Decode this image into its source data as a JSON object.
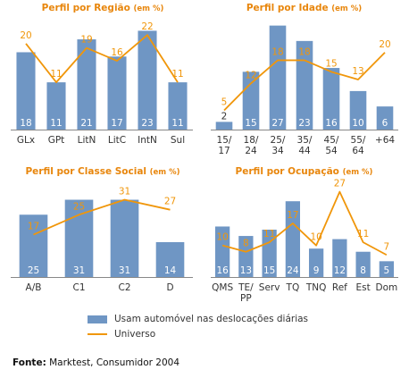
{
  "colors": {
    "bar": "#6f96c4",
    "line": "#f0960a",
    "title": "#e8860c",
    "axis": "#888888",
    "label": "#333333"
  },
  "legend": {
    "bars_label": "Usam automóvel nas deslocações diárias",
    "line_label": "Universo"
  },
  "source": {
    "label": "Fonte:",
    "text": "Marktest, Consumidor 2004"
  },
  "chart_data": [
    {
      "type": "bar",
      "title": "Perfil por Região",
      "title_unit": "(em %)",
      "categories": [
        [
          "GLx"
        ],
        [
          "GPt"
        ],
        [
          "LitN"
        ],
        [
          "LitC"
        ],
        [
          "IntN"
        ],
        [
          "Sul"
        ]
      ],
      "series": [
        {
          "name": "Usam automóvel nas deslocações diárias",
          "type": "bar",
          "values": [
            18,
            11,
            21,
            17,
            23,
            11
          ]
        },
        {
          "name": "Universo",
          "type": "line",
          "values": [
            20,
            11,
            19,
            16,
            22,
            11
          ]
        }
      ],
      "ylim": [
        0,
        26
      ]
    },
    {
      "type": "bar",
      "title": "Perfil por Idade",
      "title_unit": "(em %)",
      "categories": [
        [
          "15/",
          "17"
        ],
        [
          "18/",
          "24"
        ],
        [
          "25/",
          "34"
        ],
        [
          "35/",
          "44"
        ],
        [
          "45/",
          "54"
        ],
        [
          "55/",
          "64"
        ],
        [
          "+64"
        ]
      ],
      "series": [
        {
          "name": "Usam automóvel nas deslocações diárias",
          "type": "bar",
          "values": [
            2,
            15,
            27,
            23,
            16,
            10,
            6
          ]
        },
        {
          "name": "Universo",
          "type": "line",
          "values": [
            5,
            12,
            18,
            18,
            15,
            13,
            20
          ]
        }
      ],
      "ylim": [
        0,
        29
      ]
    },
    {
      "type": "bar",
      "title": "Perfil por Classe Social",
      "title_unit": "(em %)",
      "categories": [
        [
          "A/B"
        ],
        [
          "C1"
        ],
        [
          "C2"
        ],
        [
          "D"
        ]
      ],
      "series": [
        {
          "name": "Usam automóvel nas deslocações diárias",
          "type": "bar",
          "values": [
            25,
            31,
            31,
            14
          ]
        },
        {
          "name": "Universo",
          "type": "line",
          "values": [
            17,
            25,
            31,
            27
          ]
        }
      ],
      "ylim": [
        0,
        38
      ]
    },
    {
      "type": "bar",
      "title": "Perfil por Ocupação",
      "title_unit": "(em %)",
      "categories": [
        [
          "QMS"
        ],
        [
          "TE/",
          "PP"
        ],
        [
          "Serv"
        ],
        [
          "TQ"
        ],
        [
          "TNQ"
        ],
        [
          "Ref"
        ],
        [
          "Est"
        ],
        [
          "Dom"
        ]
      ],
      "series": [
        {
          "name": "Usam automóvel nas deslocações diárias",
          "type": "bar",
          "values": [
            16,
            13,
            15,
            24,
            9,
            12,
            8,
            5
          ]
        },
        {
          "name": "Universo",
          "type": "line",
          "values": [
            10,
            8,
            11,
            17,
            10,
            27,
            11,
            7
          ]
        }
      ],
      "ylim": [
        0,
        30
      ]
    }
  ]
}
